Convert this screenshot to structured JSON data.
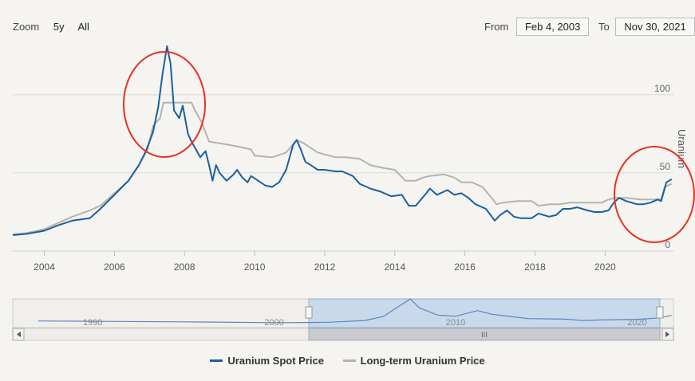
{
  "controls": {
    "zoom_label": "Zoom",
    "zoom_options": [
      "5y",
      "All"
    ],
    "from_label": "From",
    "from_value": "Feb 4, 2003",
    "to_label": "To",
    "to_value": "Nov 30, 2021"
  },
  "chart_data": {
    "type": "line",
    "ylabel": "Uranium",
    "ylim": [
      0,
      130
    ],
    "xlim": [
      2003.1,
      2021.95
    ],
    "y_ticks": [
      0,
      50,
      100
    ],
    "x_ticks": [
      "2004",
      "2006",
      "2008",
      "2010",
      "2012",
      "2014",
      "2016",
      "2018",
      "2020"
    ],
    "y_axis_side": "right",
    "grid": true,
    "series": [
      {
        "name": "Uranium Spot Price",
        "color": "#1b5fa0",
        "points": [
          [
            2003.1,
            10.2
          ],
          [
            2003.5,
            11
          ],
          [
            2004.0,
            13
          ],
          [
            2004.4,
            16.5
          ],
          [
            2004.8,
            19.5
          ],
          [
            2005.3,
            21
          ],
          [
            2005.6,
            27
          ],
          [
            2006.0,
            36
          ],
          [
            2006.4,
            45
          ],
          [
            2006.7,
            55
          ],
          [
            2006.9,
            64
          ],
          [
            2007.1,
            76
          ],
          [
            2007.25,
            92
          ],
          [
            2007.37,
            113
          ],
          [
            2007.5,
            131
          ],
          [
            2007.6,
            120
          ],
          [
            2007.7,
            90
          ],
          [
            2007.85,
            85
          ],
          [
            2007.95,
            93
          ],
          [
            2008.1,
            75
          ],
          [
            2008.2,
            70
          ],
          [
            2008.3,
            66
          ],
          [
            2008.45,
            60
          ],
          [
            2008.6,
            64
          ],
          [
            2008.7,
            55
          ],
          [
            2008.8,
            45
          ],
          [
            2008.9,
            55
          ],
          [
            2009.0,
            50
          ],
          [
            2009.2,
            45
          ],
          [
            2009.4,
            49
          ],
          [
            2009.5,
            52
          ],
          [
            2009.65,
            47
          ],
          [
            2009.8,
            44
          ],
          [
            2009.9,
            48
          ],
          [
            2010.1,
            45
          ],
          [
            2010.3,
            42
          ],
          [
            2010.5,
            41
          ],
          [
            2010.7,
            44
          ],
          [
            2010.9,
            52
          ],
          [
            2011.1,
            68
          ],
          [
            2011.2,
            71
          ],
          [
            2011.3,
            66
          ],
          [
            2011.45,
            57
          ],
          [
            2011.6,
            55
          ],
          [
            2011.8,
            52
          ],
          [
            2012.0,
            52
          ],
          [
            2012.3,
            51
          ],
          [
            2012.5,
            51
          ],
          [
            2012.8,
            48
          ],
          [
            2013.0,
            43
          ],
          [
            2013.3,
            40
          ],
          [
            2013.6,
            38
          ],
          [
            2013.9,
            35
          ],
          [
            2014.2,
            36
          ],
          [
            2014.4,
            29
          ],
          [
            2014.6,
            29
          ],
          [
            2014.9,
            37
          ],
          [
            2015.0,
            40
          ],
          [
            2015.2,
            36
          ],
          [
            2015.5,
            39
          ],
          [
            2015.7,
            36
          ],
          [
            2015.9,
            37
          ],
          [
            2016.1,
            34
          ],
          [
            2016.3,
            30
          ],
          [
            2016.6,
            27
          ],
          [
            2016.85,
            19.5
          ],
          [
            2017.0,
            23
          ],
          [
            2017.2,
            26
          ],
          [
            2017.4,
            22
          ],
          [
            2017.6,
            21
          ],
          [
            2017.9,
            21
          ],
          [
            2018.1,
            24
          ],
          [
            2018.4,
            22
          ],
          [
            2018.6,
            23
          ],
          [
            2018.8,
            27
          ],
          [
            2019.0,
            27
          ],
          [
            2019.2,
            28
          ],
          [
            2019.5,
            26
          ],
          [
            2019.7,
            25
          ],
          [
            2019.9,
            25
          ],
          [
            2020.1,
            26
          ],
          [
            2020.25,
            31
          ],
          [
            2020.4,
            34
          ],
          [
            2020.6,
            32
          ],
          [
            2020.9,
            30
          ],
          [
            2021.1,
            30
          ],
          [
            2021.3,
            31
          ],
          [
            2021.5,
            33
          ],
          [
            2021.6,
            32
          ],
          [
            2021.75,
            44
          ],
          [
            2021.9,
            46
          ]
        ]
      },
      {
        "name": "Long-term Uranium Price",
        "color": "#b5b3ae",
        "points": [
          [
            2003.1,
            10.7
          ],
          [
            2003.5,
            11.5
          ],
          [
            2004.0,
            14
          ],
          [
            2004.4,
            18
          ],
          [
            2004.8,
            22
          ],
          [
            2005.3,
            26
          ],
          [
            2005.6,
            29
          ],
          [
            2006.0,
            37
          ],
          [
            2006.4,
            45
          ],
          [
            2006.7,
            55
          ],
          [
            2006.95,
            65
          ],
          [
            2007.1,
            80
          ],
          [
            2007.3,
            85
          ],
          [
            2007.4,
            95
          ],
          [
            2008.0,
            95
          ],
          [
            2008.2,
            95
          ],
          [
            2008.3,
            90
          ],
          [
            2008.5,
            82
          ],
          [
            2008.7,
            70
          ],
          [
            2009.0,
            69
          ],
          [
            2009.5,
            67
          ],
          [
            2009.9,
            65
          ],
          [
            2010.0,
            61
          ],
          [
            2010.5,
            60
          ],
          [
            2010.9,
            63
          ],
          [
            2011.2,
            71
          ],
          [
            2011.4,
            69
          ],
          [
            2011.8,
            63
          ],
          [
            2012.3,
            60
          ],
          [
            2012.6,
            60
          ],
          [
            2013.0,
            59
          ],
          [
            2013.3,
            55
          ],
          [
            2013.7,
            53
          ],
          [
            2014.0,
            52
          ],
          [
            2014.3,
            45
          ],
          [
            2014.6,
            45
          ],
          [
            2014.8,
            47
          ],
          [
            2015.0,
            48
          ],
          [
            2015.4,
            49
          ],
          [
            2015.7,
            47
          ],
          [
            2015.9,
            44
          ],
          [
            2016.2,
            44
          ],
          [
            2016.5,
            41
          ],
          [
            2016.8,
            33
          ],
          [
            2016.9,
            30
          ],
          [
            2017.1,
            31
          ],
          [
            2017.5,
            32
          ],
          [
            2017.9,
            32
          ],
          [
            2018.1,
            29
          ],
          [
            2018.4,
            30
          ],
          [
            2018.7,
            30
          ],
          [
            2019.0,
            31
          ],
          [
            2019.5,
            31
          ],
          [
            2019.9,
            31
          ],
          [
            2020.1,
            33
          ],
          [
            2020.3,
            34
          ],
          [
            2020.6,
            34
          ],
          [
            2021.0,
            33
          ],
          [
            2021.4,
            33
          ],
          [
            2021.6,
            33
          ],
          [
            2021.7,
            41
          ],
          [
            2021.9,
            43
          ]
        ]
      }
    ],
    "navigator": {
      "x_ticks": [
        "1990",
        "2000",
        "2010",
        "2020"
      ],
      "points": [
        [
          1987,
          17.5
        ],
        [
          1990,
          16
        ],
        [
          1995,
          13
        ],
        [
          2000,
          9
        ],
        [
          2002,
          10
        ],
        [
          2003,
          11
        ],
        [
          2005,
          20
        ],
        [
          2006,
          40
        ],
        [
          2007.5,
          131
        ],
        [
          2008,
          85
        ],
        [
          2009,
          48
        ],
        [
          2010,
          42
        ],
        [
          2011.2,
          71
        ],
        [
          2012,
          52
        ],
        [
          2014,
          30
        ],
        [
          2016,
          27
        ],
        [
          2017,
          20
        ],
        [
          2018,
          23
        ],
        [
          2020,
          26
        ],
        [
          2021,
          32
        ],
        [
          2021.9,
          46
        ]
      ]
    }
  }
}
